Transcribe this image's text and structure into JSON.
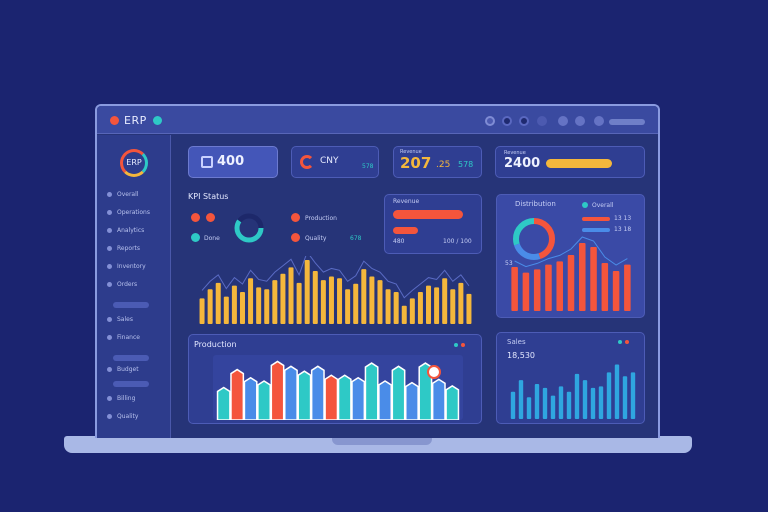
{
  "app": {
    "logo_text": "ERP"
  },
  "colors": {
    "red": "#f4553c",
    "cyan": "#2ec9c6",
    "amber": "#f4b73c",
    "blue": "#4a8ce8",
    "bg": "#1b2470"
  },
  "topbar": {
    "icons": [
      "notification-icon",
      "chat-icon",
      "settings-icon",
      "pin-icon",
      "help-icon",
      "refresh-icon",
      "user-icon"
    ]
  },
  "sidebar": {
    "avatar_text": "ERP",
    "items": [
      "Overall",
      "Operations",
      "Analytics",
      "Reports",
      "Inventory",
      "Orders",
      "Sales",
      "Finance",
      "Budget",
      "Billing",
      "Quality"
    ]
  },
  "kpis": [
    {
      "value": "400"
    },
    {
      "label": "CNY",
      "value": "207",
      "decimal": ".25",
      "sub": "578"
    },
    {
      "label": "Revenue",
      "value": "2400"
    }
  ],
  "progress_panel": {
    "title": "Revenue",
    "sub_label": "480",
    "tail": "100 / 100",
    "levels": [
      0.85,
      0.3
    ]
  },
  "gauge_panel": {
    "title": "KPI Status",
    "legend": [
      {
        "name": "Production",
        "color": "#f4553c"
      },
      {
        "name": "Quality",
        "color": "#f4553c"
      },
      {
        "name": "Done",
        "color": "#2ec9c6"
      }
    ],
    "value_label": "678"
  },
  "right_panel": {
    "title": "Distribution",
    "legend": [
      {
        "name": "Overall",
        "value": ""
      },
      {
        "name": "",
        "value": "13 13"
      },
      {
        "name": "",
        "value": "13 18"
      }
    ],
    "axis_label": "53"
  },
  "bottom_left": {
    "title": "Production"
  },
  "bottom_right": {
    "title": "Sales",
    "value": "18,530"
  },
  "chart_data": [
    {
      "type": "bar",
      "values": [
        28,
        38,
        45,
        30,
        42,
        35,
        50,
        40,
        38,
        48,
        55,
        62,
        45,
        70,
        58,
        48,
        52,
        50,
        38,
        44,
        60,
        52,
        48,
        38,
        35,
        20,
        28,
        35,
        42,
        40,
        50,
        38,
        45,
        33
      ]
    },
    {
      "type": "bar",
      "values": [
        55,
        48,
        52,
        58,
        62,
        70,
        85,
        80,
        60,
        50,
        58
      ]
    },
    {
      "type": "bar",
      "values": [
        40,
        62,
        52,
        48,
        72,
        66,
        60,
        66,
        55,
        55,
        52,
        70,
        48,
        66,
        46,
        70,
        50,
        42
      ]
    },
    {
      "type": "bar",
      "values": [
        35,
        50,
        28,
        45,
        40,
        30,
        42,
        35,
        58,
        50,
        40,
        42,
        60,
        70,
        55,
        60
      ]
    },
    {
      "type": "pie",
      "values": [
        45,
        25,
        30
      ]
    }
  ]
}
